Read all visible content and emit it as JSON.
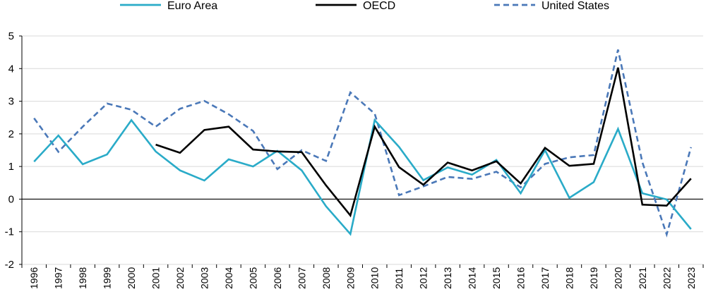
{
  "chart_data": {
    "type": "line",
    "title": "",
    "xlabel": "",
    "ylabel": "",
    "ylim": [
      -2,
      5
    ],
    "yticks": [
      "5",
      "4",
      "3",
      "2",
      "1",
      "0",
      "-1",
      "-2"
    ],
    "ytick_values": [
      5,
      4,
      3,
      2,
      1,
      0,
      -1,
      -2
    ],
    "grid": true,
    "legend_position": "top",
    "categories": [
      "1996",
      "1997",
      "1998",
      "1999",
      "2000",
      "2001",
      "2002",
      "2003",
      "2004",
      "2005",
      "2006",
      "2007",
      "2008",
      "2009",
      "2010",
      "2011",
      "2012",
      "2013",
      "2014",
      "2015",
      "2016",
      "2017",
      "2018",
      "2019",
      "2020",
      "2021",
      "2022",
      "2023"
    ],
    "series": [
      {
        "name": "Euro Area",
        "color": "#2aabc8",
        "style": "solid",
        "values": [
          1.15,
          1.95,
          1.07,
          1.37,
          2.42,
          1.46,
          0.88,
          0.57,
          1.22,
          1.0,
          1.48,
          0.88,
          -0.22,
          -1.07,
          2.42,
          1.6,
          0.58,
          0.97,
          0.75,
          1.2,
          0.18,
          1.5,
          0.04,
          0.52,
          2.15,
          0.18,
          -0.01,
          -0.92
        ]
      },
      {
        "name": "OECD",
        "color": "#000000",
        "style": "solid",
        "values": [
          null,
          null,
          null,
          null,
          null,
          1.67,
          1.42,
          2.12,
          2.22,
          1.52,
          1.46,
          1.44,
          0.42,
          -0.5,
          2.22,
          0.98,
          0.44,
          1.12,
          0.88,
          1.16,
          0.48,
          1.57,
          1.02,
          1.08,
          4.03,
          -0.17,
          -0.2,
          0.63
        ]
      },
      {
        "name": "United States",
        "color": "#4a78b8",
        "style": "dashed",
        "values": [
          2.48,
          1.45,
          2.22,
          2.93,
          2.74,
          2.22,
          2.77,
          3.01,
          2.6,
          2.09,
          0.92,
          1.5,
          1.17,
          3.27,
          2.62,
          0.12,
          0.39,
          0.68,
          0.62,
          0.84,
          0.36,
          1.08,
          1.28,
          1.35,
          4.58,
          1.13,
          -1.08,
          1.59
        ]
      }
    ]
  }
}
